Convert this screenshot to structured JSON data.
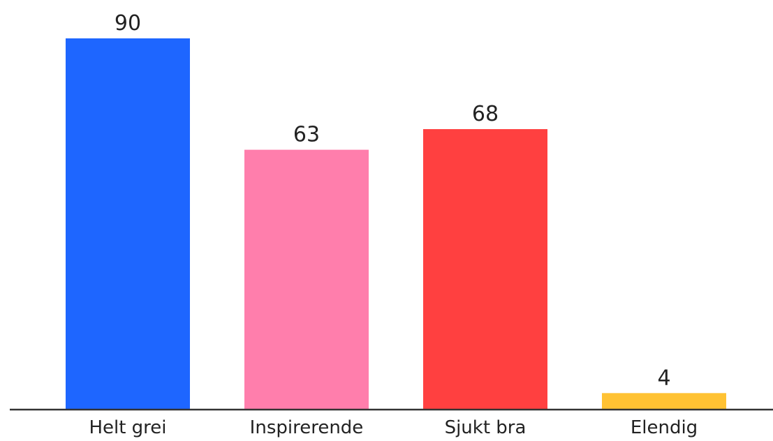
{
  "chart_data": {
    "type": "bar",
    "categories": [
      "Helt grei",
      "Inspirerende",
      "Sjukt bra",
      "Elendig"
    ],
    "values": [
      90,
      63,
      68,
      4
    ],
    "colors": [
      "#1e66ff",
      "#ff7eac",
      "#ff4040",
      "#ffc233"
    ],
    "title": "",
    "xlabel": "",
    "ylabel": "",
    "ylim": [
      0,
      90
    ],
    "grid": false,
    "legend": "none",
    "axis_color": "#333333"
  }
}
